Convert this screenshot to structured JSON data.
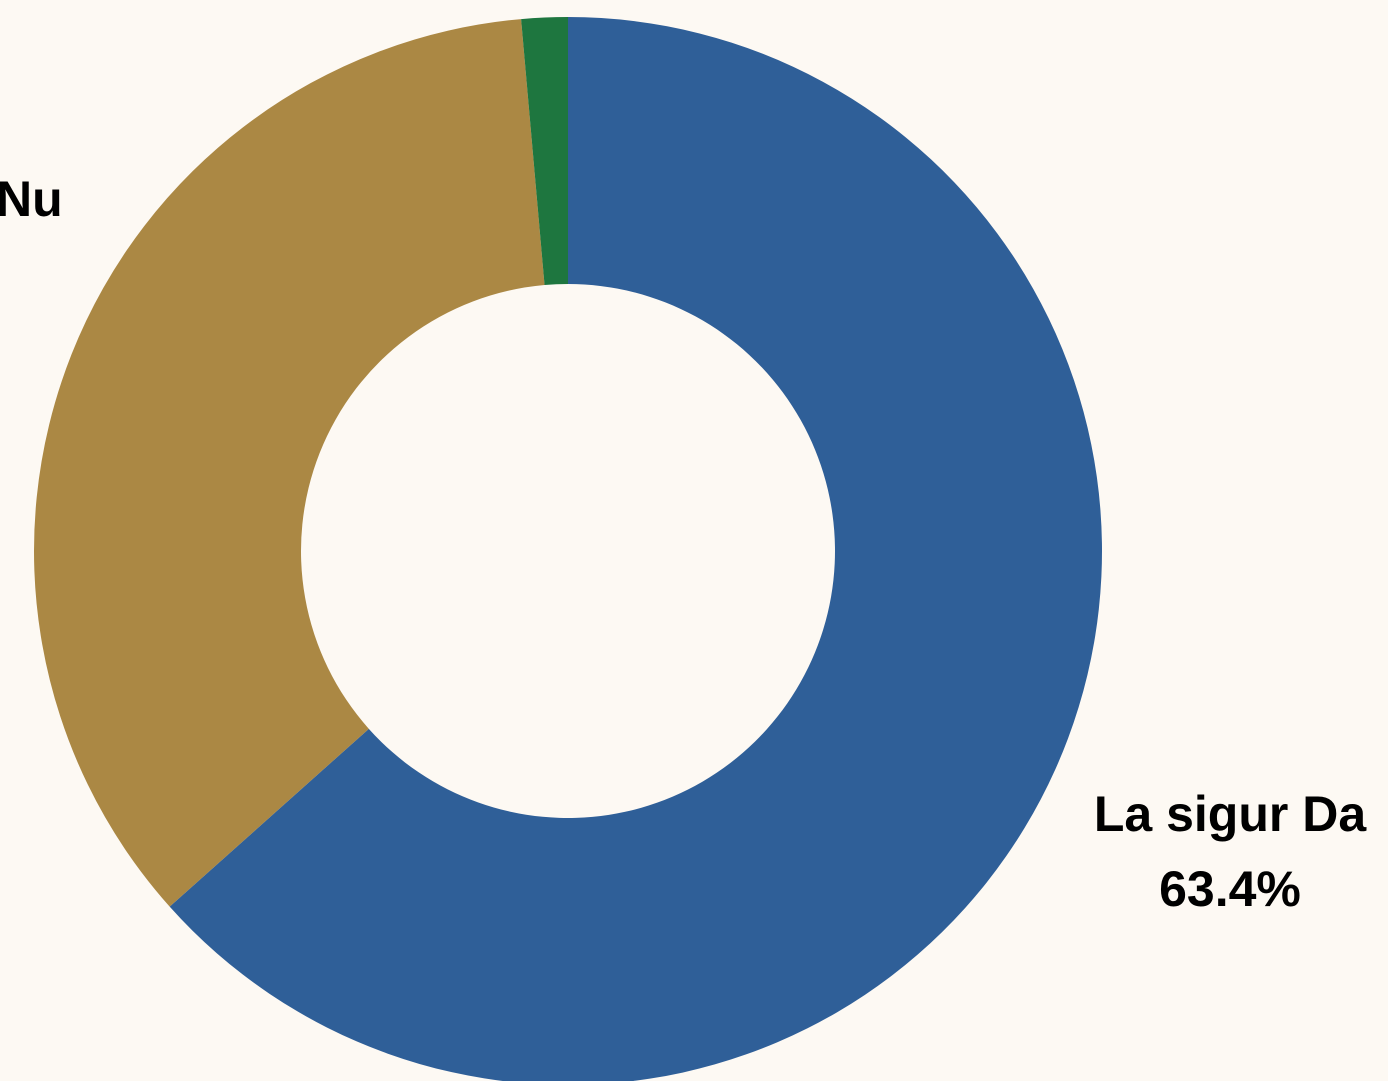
{
  "colors": {
    "background": "#fdf9f3",
    "label_text": "#000000"
  },
  "chart_data": {
    "type": "pie",
    "donut": true,
    "title": "",
    "start_angle_deg": 0,
    "direction": "clockwise",
    "slices": [
      {
        "label": "La sigur Da",
        "value": 63.4,
        "percent_label": "63.4%",
        "color": "#2f5f98"
      },
      {
        "label": "Nu",
        "value": 35.2,
        "percent_label": "",
        "color": "#ab8844"
      },
      {
        "label": "",
        "value": 1.4,
        "percent_label": "",
        "color": "#1e763f"
      }
    ]
  }
}
